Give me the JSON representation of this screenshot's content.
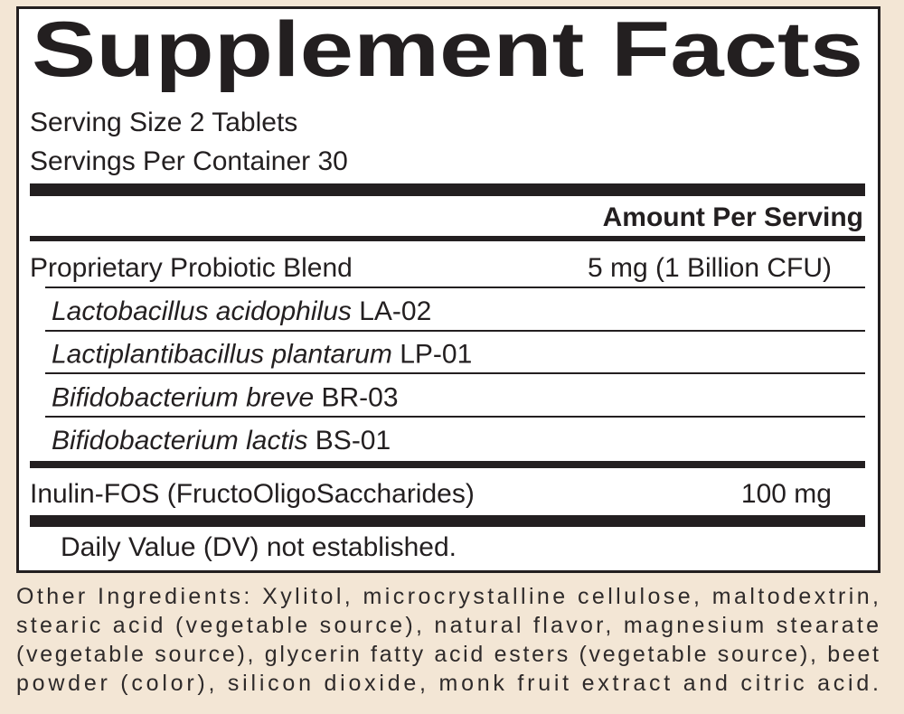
{
  "header": {
    "title": "Supplement Facts",
    "serving_size": "Serving Size 2 Tablets",
    "servings_per_container": "Servings Per Container 30"
  },
  "amount_header": "Amount Per Serving",
  "blend": {
    "name": "Proprietary Probiotic Blend",
    "amount": "5 mg (1 Billion CFU)",
    "strains": [
      {
        "species": "Lactobacillus acidophilus",
        "code": "LA-02"
      },
      {
        "species": "Lactiplantibacillus plantarum",
        "code": "LP-01"
      },
      {
        "species": "Bifidobacterium breve",
        "code": "BR-03"
      },
      {
        "species": "Bifidobacterium lactis",
        "code": "BS-01"
      }
    ]
  },
  "ingredient": {
    "name": "Inulin-FOS (FructoOligoSaccharides)",
    "amount": "100 mg"
  },
  "footnote": "Daily Value (DV) not established.",
  "other_ingredients": [
    "Other Ingredients: Xylitol, microcrystalline cellulose, maltodextrin,",
    "stearic acid (vegetable source), natural flavor, magnesium stearate",
    "(vegetable source), glycerin fatty acid esters (vegetable source), beet",
    "powder (color), silicon dioxide, monk fruit extract and citric acid."
  ]
}
